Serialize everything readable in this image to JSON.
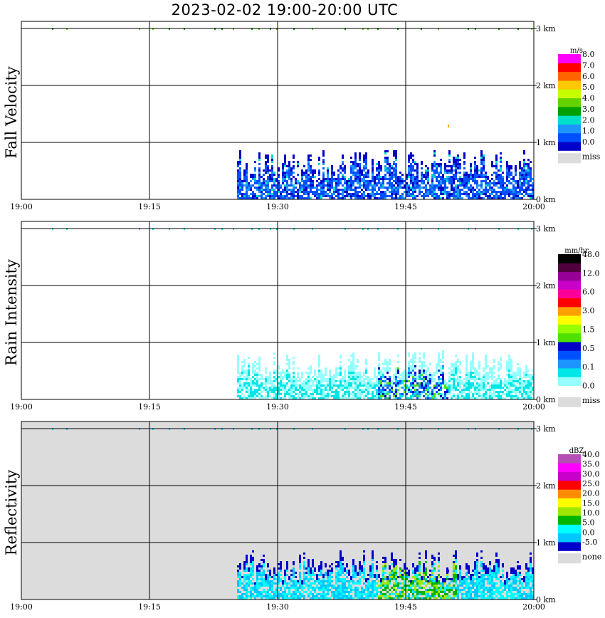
{
  "title": "2023-02-02   19:00-20:00 UTC",
  "x_ticks": [
    "19:00",
    "19:15",
    "19:30",
    "19:45",
    "20:00"
  ],
  "height_ticks": [
    "0 km",
    "1 km",
    "2 km",
    "3 km"
  ],
  "panels": [
    {
      "id": "fall-velocity",
      "ylabel": "Fall Velocity",
      "background": "#ffffff",
      "legend": {
        "unit": "m/s",
        "colors": [
          "#0000c8",
          "#0050ff",
          "#1e96ff",
          "#00e0c8",
          "#00a000",
          "#64d200",
          "#c8ff00",
          "#ffc800",
          "#ff6400",
          "#ff0000",
          "#ff00ff"
        ],
        "labels": [
          "0.0",
          "1.0",
          "2.0",
          "3.0",
          "4.0",
          "5.0",
          "6.0",
          "7.0",
          "8.0"
        ],
        "miss_label": "miss",
        "miss_color": "#dcdcdc"
      }
    },
    {
      "id": "rain-intensity",
      "ylabel": "Rain Intensity",
      "background": "#ffffff",
      "legend": {
        "unit": "mm/hr",
        "colors": [
          "#ffffff",
          "#96ffff",
          "#00e6e6",
          "#1e96ff",
          "#0050ff",
          "#0000c8",
          "#50e000",
          "#96ff00",
          "#ffff00",
          "#ffa000",
          "#ff0000",
          "#ff0096",
          "#c800c8",
          "#960096",
          "#50003c",
          "#000000"
        ],
        "labels": [
          "0.0",
          "0.1",
          "0.5",
          "1.5",
          "3.0",
          "6.0",
          "12.0",
          "48.0"
        ],
        "miss_label": "miss",
        "miss_color": "#dcdcdc"
      }
    },
    {
      "id": "reflectivity",
      "ylabel": "Reflectivity",
      "background": "#dcdcdc",
      "legend": {
        "unit": "dBZ",
        "colors": [
          "#0000c8",
          "#00c8ff",
          "#00ffff",
          "#00b400",
          "#a0e600",
          "#ffff00",
          "#ff8c00",
          "#ff0000",
          "#c800c8",
          "#ff00ff",
          "#b450b4"
        ],
        "labels": [
          "-5.0",
          "0.0",
          "5.0",
          "10.0",
          "15.0",
          "20.0",
          "25.0",
          "30.0",
          "35.0",
          "40.0"
        ],
        "miss_label": "none",
        "miss_color": "#dcdcdc"
      }
    }
  ],
  "chart_data": {
    "type": "heatmap",
    "x_range": [
      "19:00",
      "20:00"
    ],
    "y_range_km": [
      0,
      3
    ],
    "precipitation_window": [
      "19:25",
      "19:59"
    ],
    "echo_top_km": 0.9,
    "surface_row_km": 3.0
  }
}
